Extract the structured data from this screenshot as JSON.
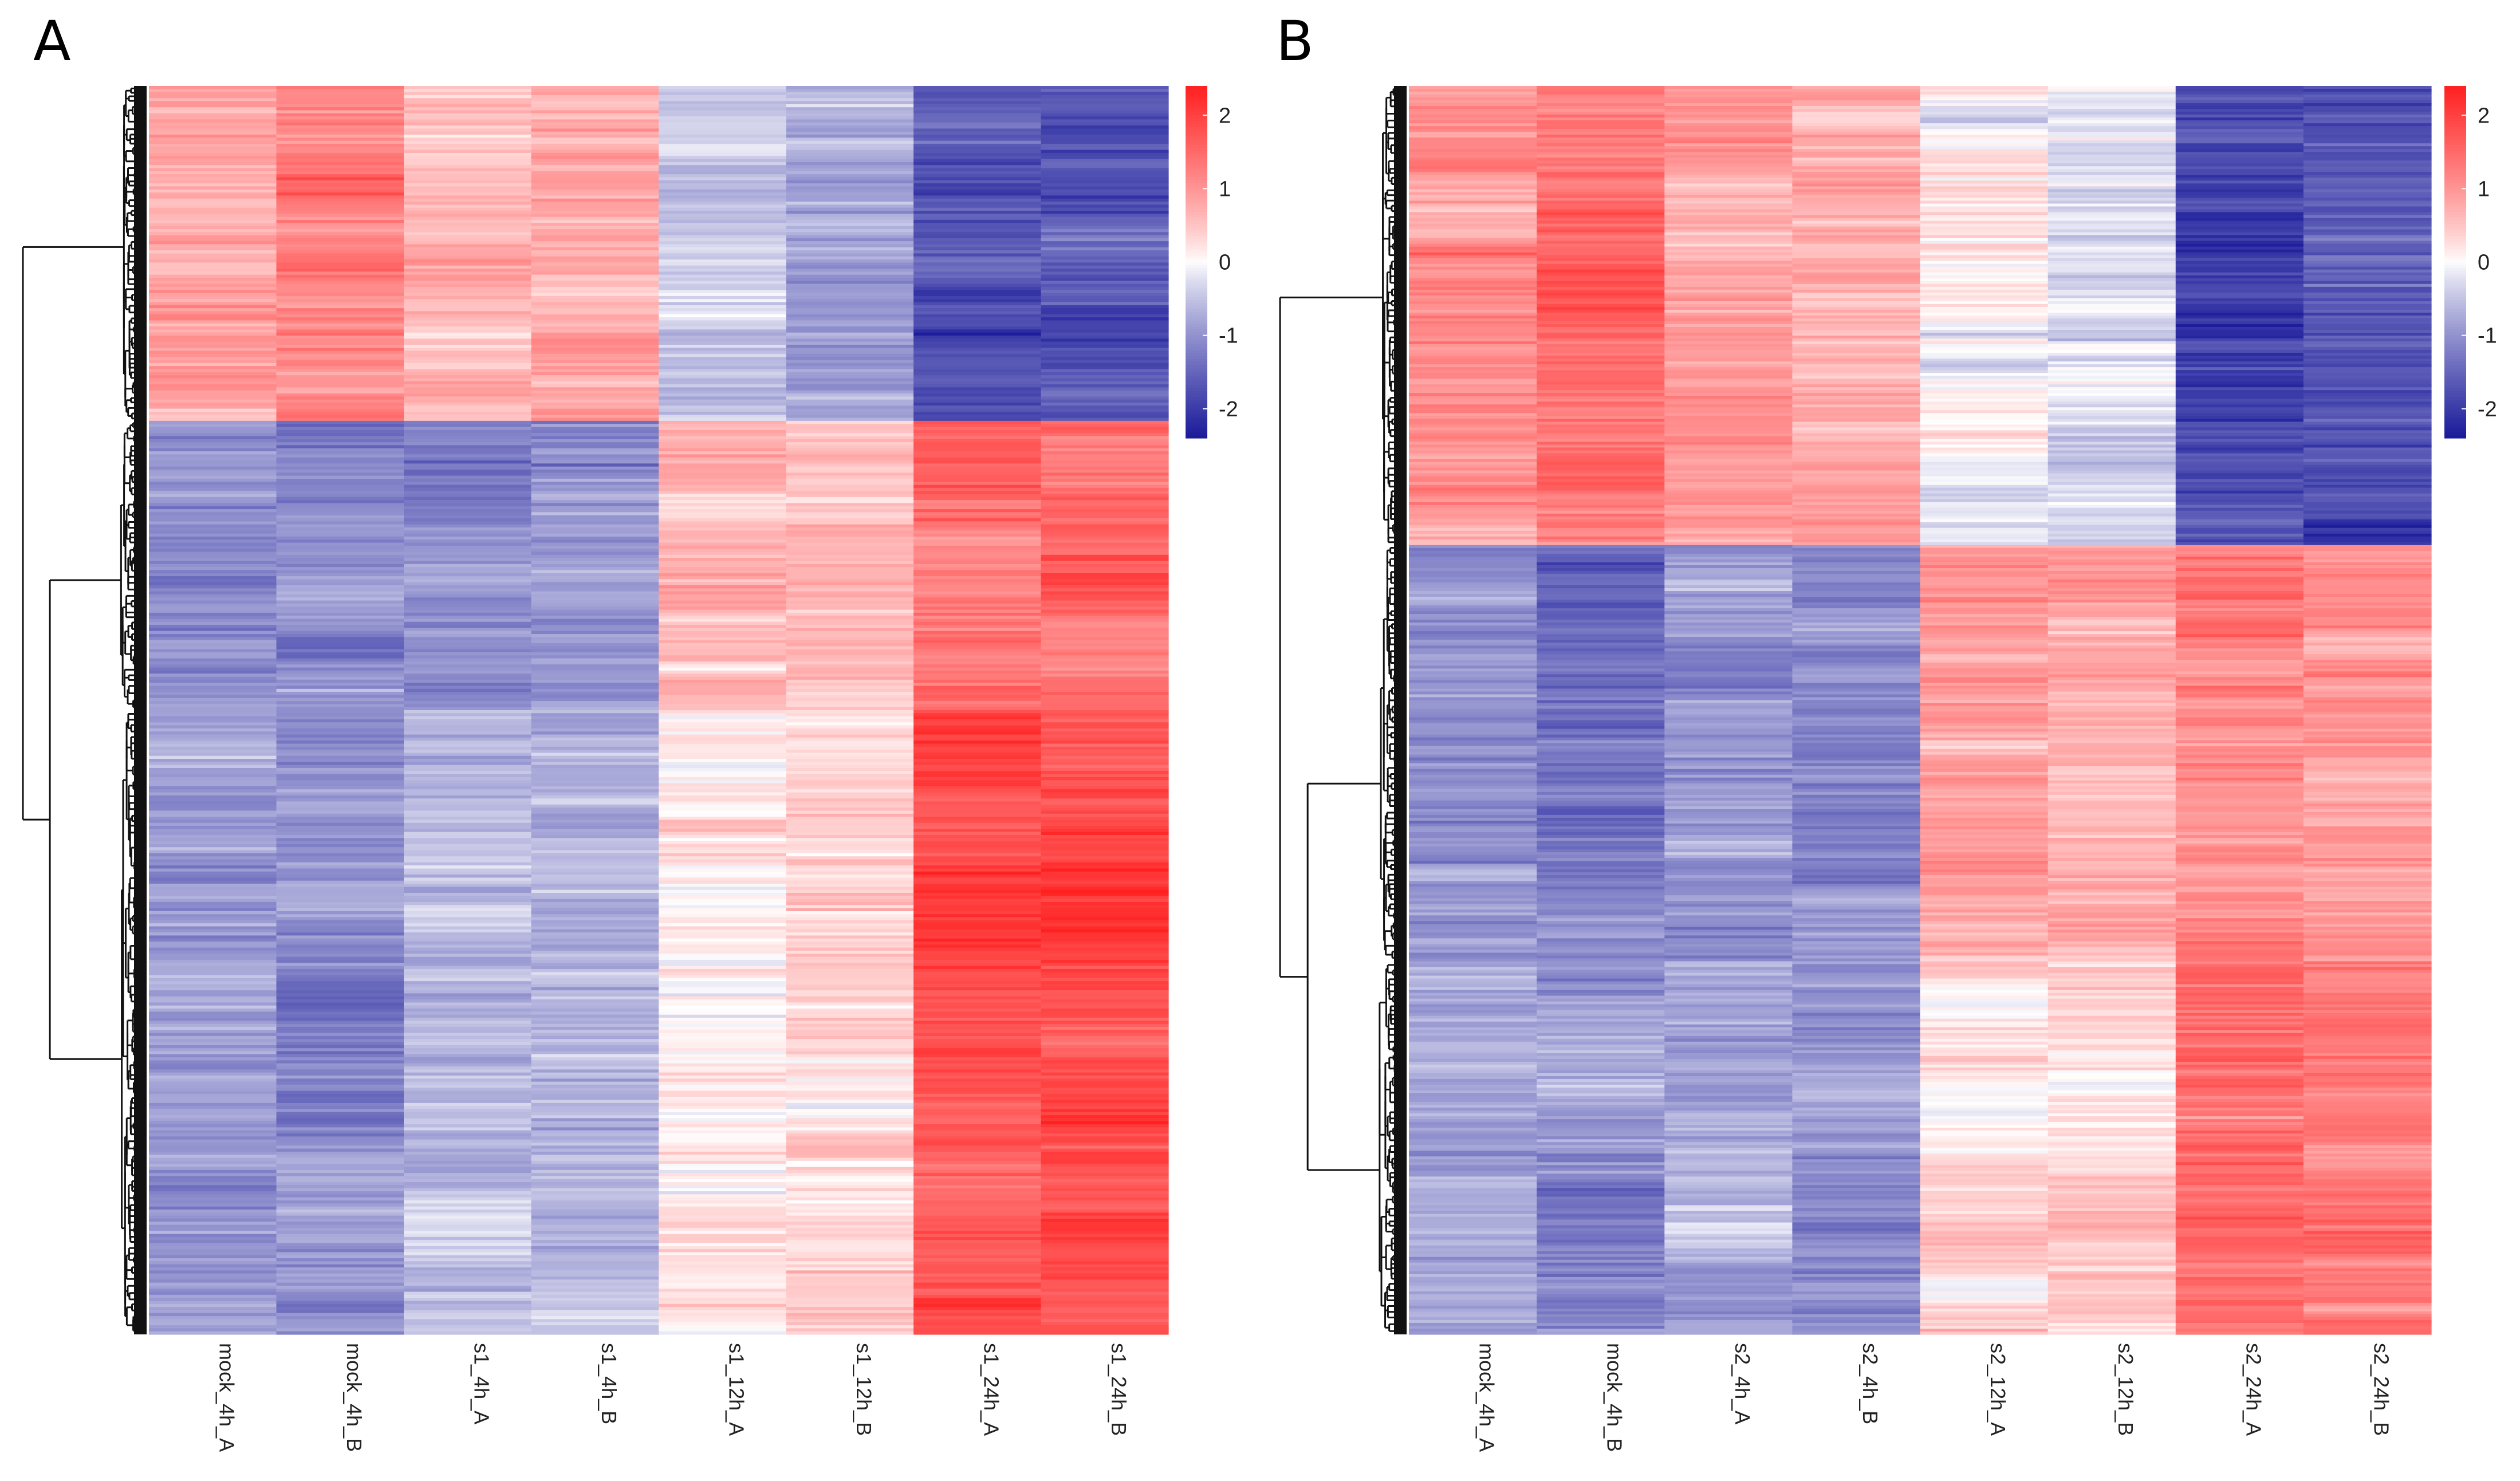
{
  "chart_data": [
    {
      "type": "heatmap",
      "title": "",
      "panel_label": "A",
      "columns": [
        "mock_4h_A",
        "mock_4h_B",
        "s1_4h_A",
        "s1_4h_B",
        "s1_12h_A",
        "s1_12h_B",
        "s1_24h_A",
        "s1_24h_B"
      ],
      "row_clusters": [
        {
          "rows": 110,
          "means": [
            0.8,
            1.2,
            0.6,
            0.7,
            -0.4,
            -0.7,
            -1.8,
            -1.7
          ]
        },
        {
          "rows": 95,
          "means": [
            -1.0,
            -1.1,
            -1.1,
            -1.0,
            0.6,
            0.6,
            1.6,
            1.5
          ]
        },
        {
          "rows": 205,
          "means": [
            -0.9,
            -1.0,
            -0.5,
            -0.7,
            0.2,
            0.3,
            1.9,
            1.9
          ]
        }
      ],
      "colorbar": {
        "min": -2.4,
        "max": 2.4,
        "ticks": [
          2,
          1,
          0,
          -1,
          -2
        ],
        "low_color": "#1a1a9a",
        "mid_color": "#ffffff",
        "high_color": "#ff2020"
      },
      "dendrogram": "rows-left",
      "grid": false
    },
    {
      "type": "heatmap",
      "title": "",
      "panel_label": "B",
      "columns": [
        "mock_4h_A",
        "mock_4h_B",
        "s2_4h_A",
        "s2_4h_B",
        "s2_12h_A",
        "s2_12h_B",
        "s2_24h_A",
        "s2_24h_B"
      ],
      "row_clusters": [
        {
          "rows": 160,
          "means": [
            1.0,
            1.4,
            0.9,
            0.8,
            0.1,
            -0.2,
            -1.8,
            -1.7
          ]
        },
        {
          "rows": 145,
          "means": [
            -1.0,
            -1.3,
            -0.9,
            -1.0,
            0.8,
            0.7,
            1.2,
            1.0
          ]
        },
        {
          "rows": 130,
          "means": [
            -0.8,
            -0.9,
            -0.7,
            -1.0,
            0.3,
            0.4,
            1.4,
            1.3
          ]
        }
      ],
      "colorbar": {
        "min": -2.4,
        "max": 2.4,
        "ticks": [
          2,
          1,
          0,
          -1,
          -2
        ],
        "low_color": "#1a1a9a",
        "mid_color": "#ffffff",
        "high_color": "#ff2020"
      },
      "dendrogram": "rows-left",
      "grid": false
    }
  ]
}
